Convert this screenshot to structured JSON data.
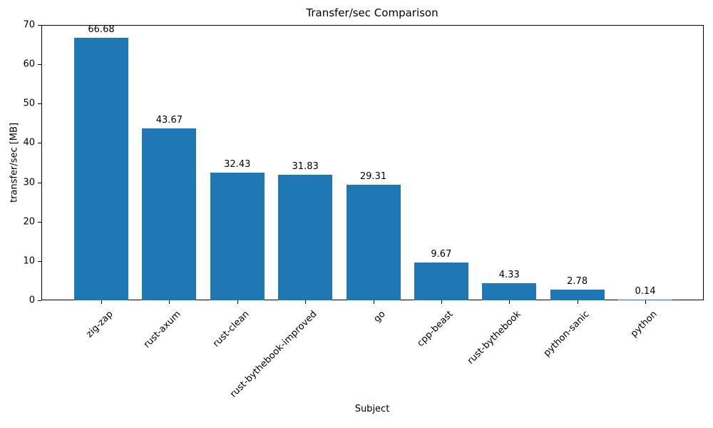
{
  "chart_data": {
    "type": "bar",
    "title": "Transfer/sec Comparison",
    "xlabel": "Subject",
    "ylabel": "transfer/sec [MB]",
    "categories": [
      "zig-zap",
      "rust-axum",
      "rust-clean",
      "rust-bythebook-improved",
      "go",
      "cpp-beast",
      "rust-bythebook",
      "python-sanic",
      "python"
    ],
    "values": [
      66.68,
      43.67,
      32.43,
      31.83,
      29.31,
      9.67,
      4.33,
      2.78,
      0.14
    ],
    "value_labels": [
      "66.68",
      "43.67",
      "32.43",
      "31.83",
      "29.31",
      "9.67",
      "4.33",
      "2.78",
      "0.14"
    ],
    "yticks": [
      0,
      10,
      20,
      30,
      40,
      50,
      60,
      70
    ],
    "ylim": [
      0,
      70
    ],
    "bar_color": "#1f77b4",
    "grid": false,
    "legend_position": "none"
  }
}
